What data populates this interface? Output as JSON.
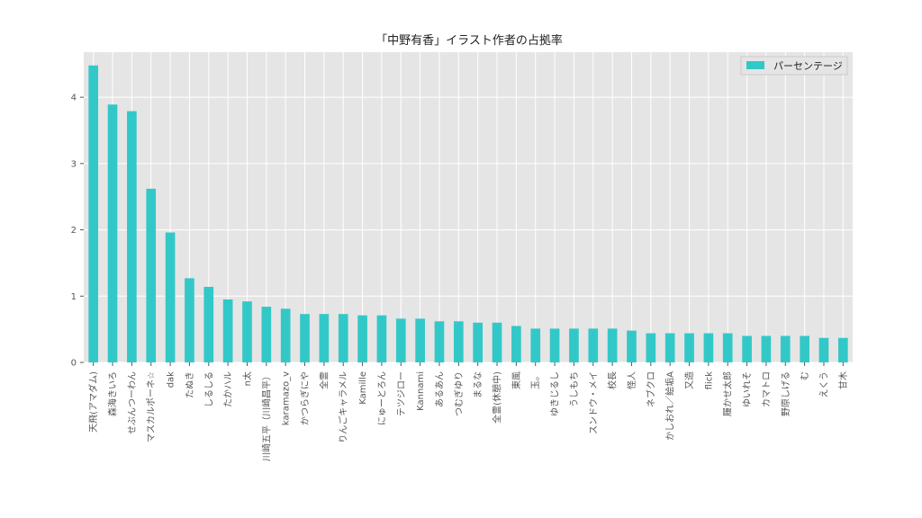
{
  "chart_data": {
    "type": "bar",
    "title": "「中野有香」イラスト作者の占拠率",
    "xlabel": "",
    "ylabel": "",
    "ylim": [
      0,
      4.68
    ],
    "yticks": [
      0,
      1,
      2,
      3,
      4
    ],
    "grid": true,
    "legend_position": "top-right",
    "colors": {
      "bar": "#33c8c8",
      "plot_bg": "#e5e5e5",
      "grid": "#ffffff"
    },
    "categories": [
      "天飛(アマダム)",
      "森海きいろ",
      "せぶんつーわん",
      "マスカルポーネ☆",
      "dak",
      "たぬき",
      "しるしる",
      "たかハル",
      "n太",
      "川崎五平（川崎昌平）",
      "karamazo_v",
      "かつらぎにや",
      "全霊",
      "りんごキャラメル",
      "Kamille",
      "にゅーとろん",
      "テツジロー",
      "Kannami",
      "あるあん",
      "つむぎゆり",
      "まるな",
      "全霊(休憩中)",
      "東風",
      "玉。",
      "ゆきじるし",
      "うしもち",
      "スンドウ・メイ",
      "校長",
      "怪人",
      "ネブクロ",
      "かしおれ／絵垢A",
      "又造",
      "flick",
      "履かせ太郎",
      "ゆいれそ",
      "カマトロ",
      "野原しげる",
      "む",
      "えくう",
      "甘木"
    ],
    "series": [
      {
        "name": "パーセンテージ",
        "values": [
          4.48,
          3.89,
          3.79,
          2.62,
          1.96,
          1.27,
          1.14,
          0.95,
          0.92,
          0.84,
          0.81,
          0.73,
          0.73,
          0.73,
          0.71,
          0.71,
          0.66,
          0.66,
          0.62,
          0.62,
          0.6,
          0.6,
          0.55,
          0.51,
          0.51,
          0.51,
          0.51,
          0.51,
          0.48,
          0.44,
          0.44,
          0.44,
          0.44,
          0.44,
          0.4,
          0.4,
          0.4,
          0.4,
          0.37,
          0.37
        ]
      }
    ]
  }
}
